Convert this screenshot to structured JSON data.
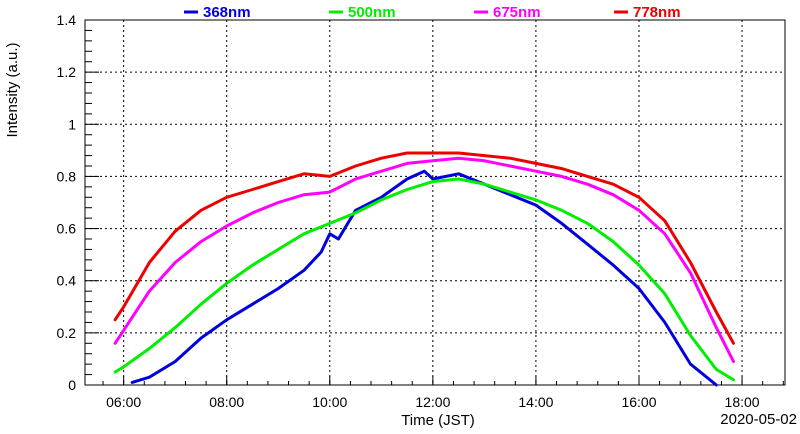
{
  "chart_data": {
    "type": "line",
    "xlabel": "Time (JST)",
    "ylabel": "Intensity (a.u.)",
    "date_label": "2020-05-02",
    "xlim": [
      "05:15",
      "18:50"
    ],
    "ylim": [
      0,
      1.4
    ],
    "grid": true,
    "legend_position": "top",
    "x_ticks": [
      "06:00",
      "08:00",
      "10:00",
      "12:00",
      "14:00",
      "16:00",
      "18:00"
    ],
    "y_ticks": [
      "0",
      "0.2",
      "0.4",
      "0.6",
      "0.8",
      "1",
      "1.2",
      "1.4"
    ],
    "series": [
      {
        "name": "368nm",
        "color": "#0000dd",
        "x": [
          "06:10",
          "06:30",
          "07:00",
          "07:30",
          "08:00",
          "08:30",
          "09:00",
          "09:30",
          "09:50",
          "10:00",
          "10:10",
          "10:30",
          "11:00",
          "11:30",
          "11:50",
          "12:00",
          "12:30",
          "13:00",
          "13:30",
          "14:00",
          "14:30",
          "15:00",
          "15:30",
          "16:00",
          "16:30",
          "17:00",
          "17:30"
        ],
        "y": [
          0.01,
          0.03,
          0.09,
          0.18,
          0.25,
          0.31,
          0.37,
          0.44,
          0.51,
          0.58,
          0.56,
          0.67,
          0.72,
          0.79,
          0.82,
          0.79,
          0.81,
          0.77,
          0.73,
          0.69,
          0.62,
          0.54,
          0.46,
          0.37,
          0.24,
          0.08,
          0.0
        ]
      },
      {
        "name": "500nm",
        "color": "#00ee00",
        "x": [
          "05:50",
          "06:00",
          "06:30",
          "07:00",
          "07:30",
          "08:00",
          "08:30",
          "09:00",
          "09:30",
          "10:00",
          "10:30",
          "11:00",
          "11:30",
          "12:00",
          "12:30",
          "13:00",
          "13:30",
          "14:00",
          "14:30",
          "15:00",
          "15:30",
          "16:00",
          "16:30",
          "17:00",
          "17:30",
          "17:50"
        ],
        "y": [
          0.05,
          0.07,
          0.14,
          0.22,
          0.31,
          0.39,
          0.46,
          0.52,
          0.58,
          0.62,
          0.66,
          0.71,
          0.75,
          0.78,
          0.79,
          0.77,
          0.74,
          0.71,
          0.67,
          0.62,
          0.55,
          0.46,
          0.35,
          0.19,
          0.06,
          0.02
        ]
      },
      {
        "name": "675nm",
        "color": "#ff00ff",
        "x": [
          "05:50",
          "06:00",
          "06:30",
          "07:00",
          "07:30",
          "08:00",
          "08:30",
          "09:00",
          "09:30",
          "10:00",
          "10:30",
          "11:00",
          "11:30",
          "12:00",
          "12:30",
          "13:00",
          "13:30",
          "14:00",
          "14:30",
          "15:00",
          "15:30",
          "16:00",
          "16:30",
          "17:00",
          "17:30",
          "17:50"
        ],
        "y": [
          0.16,
          0.21,
          0.36,
          0.47,
          0.55,
          0.61,
          0.66,
          0.7,
          0.73,
          0.74,
          0.79,
          0.82,
          0.85,
          0.86,
          0.87,
          0.86,
          0.84,
          0.82,
          0.8,
          0.77,
          0.73,
          0.67,
          0.58,
          0.43,
          0.22,
          0.09
        ]
      },
      {
        "name": "778nm",
        "color": "#ee0000",
        "x": [
          "05:50",
          "06:00",
          "06:30",
          "07:00",
          "07:30",
          "08:00",
          "08:30",
          "09:00",
          "09:30",
          "10:00",
          "10:30",
          "11:00",
          "11:30",
          "12:00",
          "12:30",
          "13:00",
          "13:30",
          "14:00",
          "14:30",
          "15:00",
          "15:30",
          "16:00",
          "16:30",
          "17:00",
          "17:30",
          "17:50"
        ],
        "y": [
          0.25,
          0.3,
          0.47,
          0.59,
          0.67,
          0.72,
          0.75,
          0.78,
          0.81,
          0.8,
          0.84,
          0.87,
          0.89,
          0.89,
          0.89,
          0.88,
          0.87,
          0.85,
          0.83,
          0.8,
          0.77,
          0.72,
          0.63,
          0.47,
          0.28,
          0.16
        ]
      }
    ]
  }
}
